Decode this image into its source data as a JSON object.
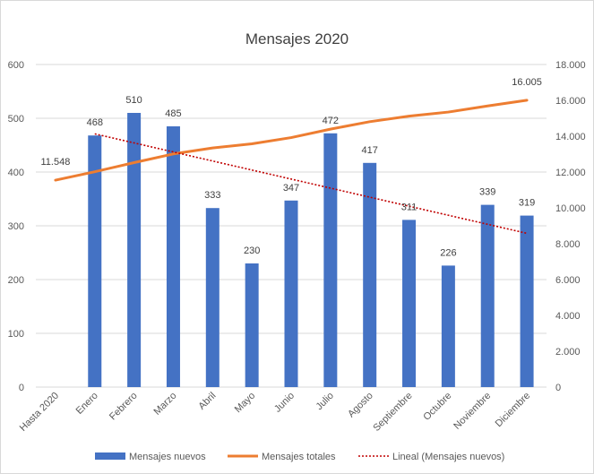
{
  "chart_data": {
    "type": "bar",
    "title": "Mensajes 2020",
    "categories": [
      "Hasta 2020",
      "Enero",
      "Febrero",
      "Marzo",
      "Abril",
      "Mayo",
      "Junio",
      "Julio",
      "Agosto",
      "Septiembre",
      "Octubre",
      "Noviembre",
      "Diciembre"
    ],
    "series": [
      {
        "name": "Mensajes nuevos",
        "type": "bar",
        "axis": "left",
        "color": "#4472c4",
        "values": [
          null,
          468,
          510,
          485,
          333,
          230,
          347,
          472,
          417,
          311,
          226,
          339,
          319
        ],
        "labels": [
          "",
          "468",
          "510",
          "485",
          "333",
          "230",
          "347",
          "472",
          "417",
          "311",
          "226",
          "339",
          "319"
        ]
      },
      {
        "name": "Mensajes totales",
        "type": "line",
        "axis": "right",
        "color": "#ed7d31",
        "values": [
          11548,
          12016,
          12526,
          13011,
          13344,
          13574,
          13921,
          14393,
          14810,
          15121,
          15347,
          15686,
          16005
        ],
        "labels": [
          "11.548",
          "",
          "",
          "",
          "",
          "",
          "",
          "",
          "",
          "",
          "",
          "",
          "16.005"
        ]
      },
      {
        "name": "Lineal (Mensajes nuevos)",
        "type": "trendline",
        "axis": "left",
        "color": "#c00000",
        "from": {
          "category": "Enero",
          "value": 471
        },
        "to": {
          "category": "Diciembre",
          "value": 286
        }
      }
    ],
    "y_left": {
      "min": 0,
      "max": 600,
      "ticks": [
        0,
        100,
        200,
        300,
        400,
        500,
        600
      ],
      "tick_labels": [
        "0",
        "100",
        "200",
        "300",
        "400",
        "500",
        "600"
      ]
    },
    "y_right": {
      "min": 0,
      "max": 18000,
      "ticks": [
        0,
        2000,
        4000,
        6000,
        8000,
        10000,
        12000,
        14000,
        16000,
        18000
      ],
      "tick_labels": [
        "0",
        "2.000",
        "4.000",
        "6.000",
        "8.000",
        "10.000",
        "12.000",
        "14.000",
        "16.000",
        "18.000"
      ]
    },
    "grid": true,
    "legend_position": "bottom"
  }
}
